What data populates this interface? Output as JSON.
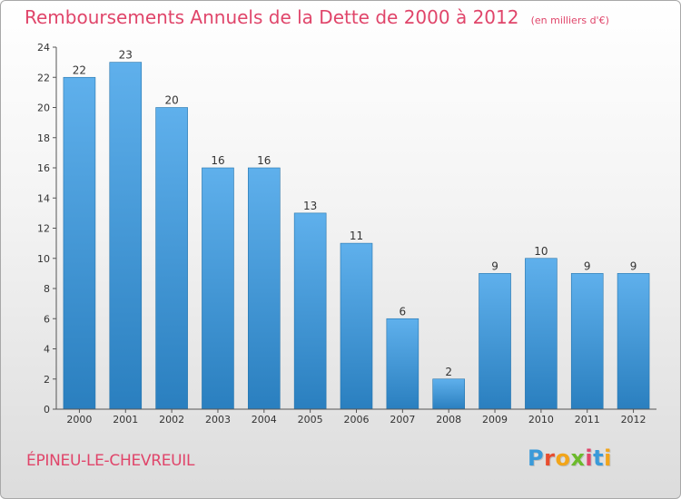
{
  "header": {
    "title": "Remboursements Annuels de la Dette de 2000 à 2012",
    "subtitle": "(en milliers d'€)"
  },
  "footer": {
    "commune": "ÉPINEU-LE-CHEVREUIL",
    "logo_letters": [
      "P",
      "r",
      "o",
      "x",
      "i",
      "t",
      "i"
    ],
    "logo_colors": [
      "#3a9ad9",
      "#e84d2f",
      "#f2a51a",
      "#6cba2c",
      "#e0456a",
      "#3a9ad9",
      "#f2a51a"
    ]
  },
  "chart_data": {
    "type": "bar",
    "title": "Remboursements Annuels de la Dette de 2000 à 2012",
    "subtitle": "(en milliers d'€)",
    "categories": [
      "2000",
      "2001",
      "2002",
      "2003",
      "2004",
      "2005",
      "2006",
      "2007",
      "2008",
      "2009",
      "2010",
      "2011",
      "2012"
    ],
    "values": [
      22,
      23,
      20,
      16,
      16,
      13,
      11,
      6,
      2,
      9,
      10,
      9,
      9
    ],
    "ylim": [
      0,
      24
    ],
    "yticks": [
      0,
      2,
      4,
      6,
      8,
      10,
      12,
      14,
      16,
      18,
      20,
      22,
      24
    ],
    "grid": false,
    "bar_color_top": "#5fb0ec",
    "bar_color_bottom": "#2a7fbf"
  }
}
